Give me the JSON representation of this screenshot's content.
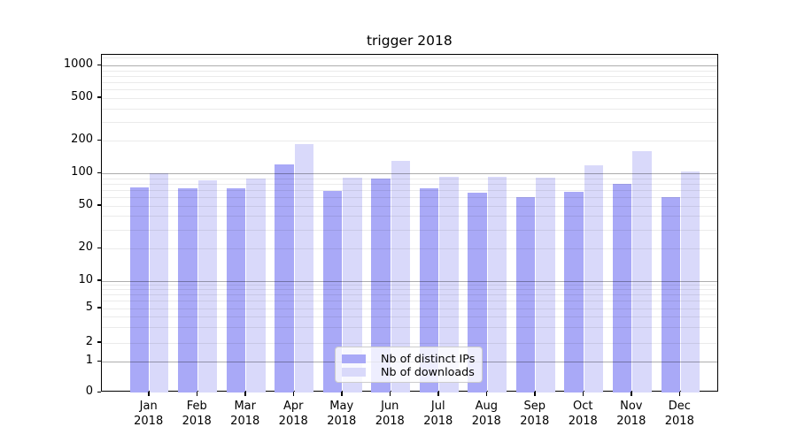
{
  "title": "trigger 2018",
  "colors": {
    "series_dark": "#a9a9f7",
    "series_light": "#d9d9fa",
    "grid_major": "#b0b0b0",
    "grid_minor": "#ebebeb",
    "axis": "#000000",
    "legend_border": "#cccccc",
    "legend_background": "rgba(255,255,255,0.8)"
  },
  "legend": {
    "items": [
      {
        "label": "Nb of distinct IPs",
        "color": "#a9a9f7"
      },
      {
        "label": "Nb of downloads",
        "color": "#d9d9fa"
      }
    ]
  },
  "chart_data": {
    "type": "bar",
    "title": "trigger 2018",
    "categories": [
      "Jan 2018",
      "Feb 2018",
      "Mar 2018",
      "Apr 2018",
      "May 2018",
      "Jun 2018",
      "Jul 2018",
      "Aug 2018",
      "Sep 2018",
      "Oct 2018",
      "Nov 2018",
      "Dec 2018"
    ],
    "x_tick_labels_line1": [
      "Jan",
      "Feb",
      "Mar",
      "Apr",
      "May",
      "Jun",
      "Jul",
      "Aug",
      "Sep",
      "Oct",
      "Nov",
      "Dec"
    ],
    "x_tick_labels_line2": [
      "2018",
      "2018",
      "2018",
      "2018",
      "2018",
      "2018",
      "2018",
      "2018",
      "2018",
      "2018",
      "2018",
      "2018"
    ],
    "series": [
      {
        "name": "Nb of distinct IPs",
        "values": [
          74,
          72,
          72,
          120,
          68,
          90,
          73,
          66,
          60,
          67,
          79,
          60
        ]
      },
      {
        "name": "Nb of downloads",
        "values": [
          100,
          86,
          90,
          185,
          91,
          130,
          92,
          92,
          91,
          119,
          160,
          103
        ]
      }
    ],
    "xlabel": "",
    "ylabel": "",
    "yscale": "symlog",
    "yticks": [
      0,
      1,
      2,
      5,
      10,
      20,
      50,
      100,
      200,
      500,
      1000
    ],
    "ylim": [
      0,
      1270
    ],
    "grid": true,
    "grid_over_bars": true,
    "legend_position": "lower center"
  }
}
